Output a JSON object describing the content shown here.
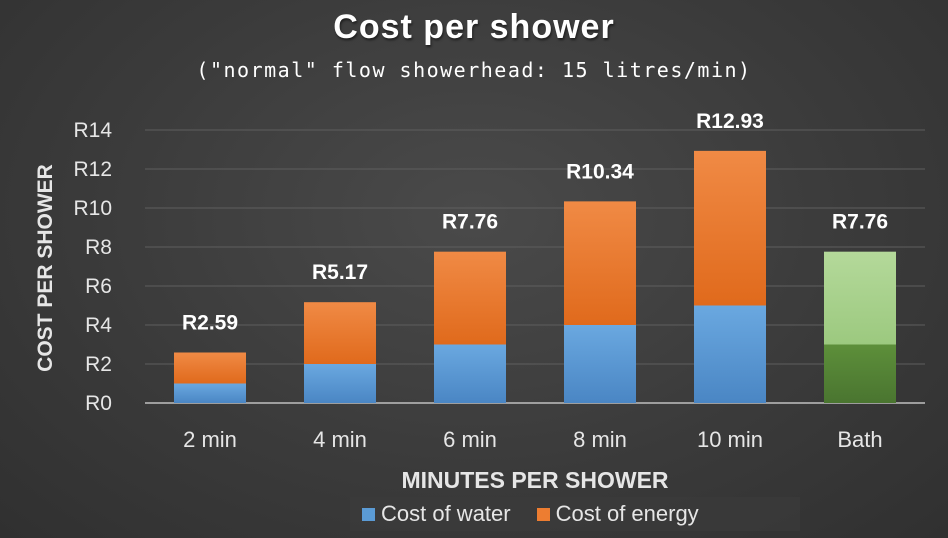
{
  "chart_data": {
    "type": "bar",
    "stacked": true,
    "title": "Cost per shower",
    "subtitle": "(\"normal\" flow showerhead: 15 litres/min)",
    "xlabel": "MINUTES PER SHOWER",
    "ylabel": "COST PER SHOWER",
    "categories": [
      "2 min",
      "4 min",
      "6 min",
      "8 min",
      "10 min",
      "Bath"
    ],
    "series": [
      {
        "name": "Cost of water",
        "values": [
          1.0,
          2.0,
          3.0,
          4.0,
          5.0,
          3.0
        ],
        "color": "#5b9bd5"
      },
      {
        "name": "Cost of energy",
        "values": [
          1.59,
          3.17,
          4.76,
          6.34,
          7.93,
          4.76
        ],
        "color": "#ed7d31"
      }
    ],
    "bath_colors": {
      "water": "#548235",
      "energy": "#a9d18e"
    },
    "total_labels": [
      "R2.59",
      "R5.17",
      "R7.76",
      "R10.34",
      "R12.93",
      "R7.76"
    ],
    "y_ticks": [
      "R0",
      "R2",
      "R4",
      "R6",
      "R8",
      "R10",
      "R12",
      "R14"
    ],
    "ylim": [
      0,
      14
    ],
    "grid": true,
    "legend_position": "bottom"
  }
}
